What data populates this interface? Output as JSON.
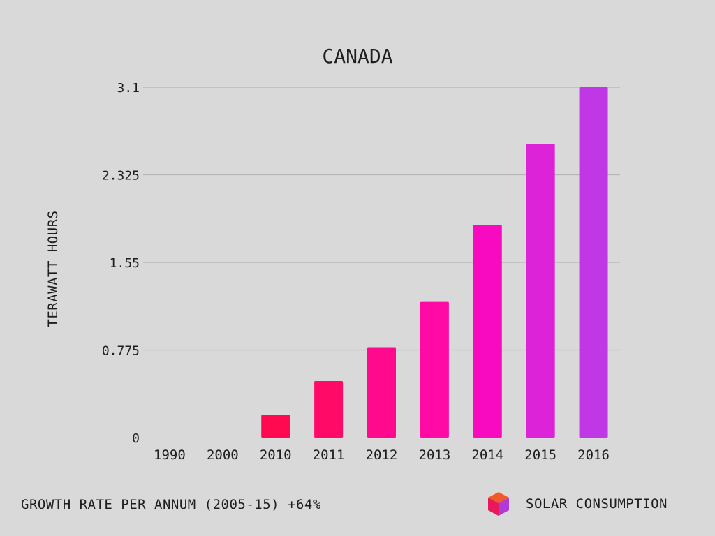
{
  "chart_data": {
    "type": "bar",
    "title": "CANADA",
    "ylabel": "TERAWATT HOURS",
    "xlabel": "",
    "categories": [
      "1990",
      "2000",
      "2010",
      "2011",
      "2012",
      "2013",
      "2014",
      "2015",
      "2016"
    ],
    "values": [
      0,
      0,
      0.2,
      0.5,
      0.8,
      1.2,
      1.88,
      2.6,
      3.1
    ],
    "colors": [
      "#ff0a50",
      "#ff0a50",
      "#ff0a50",
      "#ff0a66",
      "#ff0a8c",
      "#ff0aa5",
      "#f80ac0",
      "#dc23d8",
      "#c037e6"
    ],
    "ylim": [
      0,
      3.1
    ],
    "yticks": [
      0,
      0.775,
      1.55,
      2.325,
      3.1
    ],
    "ytick_labels": [
      "0",
      "0.775",
      "1.55",
      "2.325",
      "3.1"
    ],
    "grid": true,
    "legend": "none"
  },
  "footer": {
    "growth_rate": "GROWTH RATE PER ANNUM (2005-15) +64%",
    "brand": "SOLAR CONSUMPTION",
    "logo_colors": {
      "top": "#f05a28",
      "left": "#e8185a",
      "right": "#b03ad6"
    }
  }
}
